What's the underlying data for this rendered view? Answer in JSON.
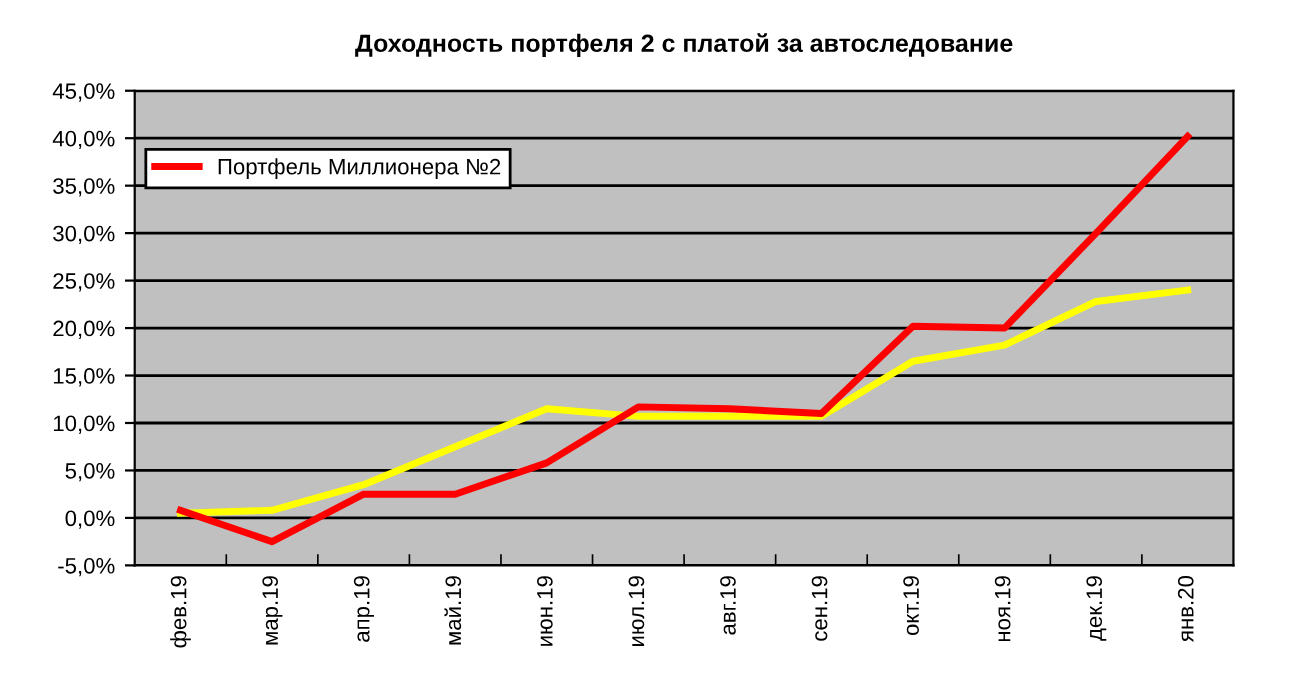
{
  "chart_data": {
    "type": "line",
    "title": "Доходность портфеля 2 с платой за автоследование",
    "categories": [
      "фев.19",
      "мар.19",
      "апр.19",
      "май.19",
      "июн.19",
      "июл.19",
      "авг.19",
      "сен.19",
      "окт.19",
      "ноя.19",
      "дек.19",
      "янв.20"
    ],
    "series": [
      {
        "color": "#ffff00",
        "values": [
          0.5,
          0.8,
          3.5,
          7.5,
          11.5,
          10.7,
          10.7,
          10.7,
          16.5,
          18.2,
          22.8,
          24.0
        ]
      },
      {
        "name": "Портфель Миллионера №2",
        "color": "#ff0000",
        "values": [
          0.8,
          -2.5,
          2.5,
          2.5,
          5.8,
          11.7,
          11.5,
          11.0,
          20.2,
          20.0,
          30.0,
          40.2
        ]
      }
    ],
    "ylim": [
      -5,
      45
    ],
    "yticks": [
      {
        "value": -5,
        "label": "-5,0%"
      },
      {
        "value": 0,
        "label": "0,0%"
      },
      {
        "value": 5,
        "label": "5,0%"
      },
      {
        "value": 10,
        "label": "10,0%"
      },
      {
        "value": 15,
        "label": "15,0%"
      },
      {
        "value": 20,
        "label": "20,0%"
      },
      {
        "value": 25,
        "label": "25,0%"
      },
      {
        "value": 30,
        "label": "30,0%"
      },
      {
        "value": 35,
        "label": "35,0%"
      },
      {
        "value": 40,
        "label": "40,0%"
      },
      {
        "value": 45,
        "label": "45,0%"
      }
    ],
    "grid": "y",
    "legend": "top left",
    "marker": "none",
    "line_style": "solid"
  }
}
